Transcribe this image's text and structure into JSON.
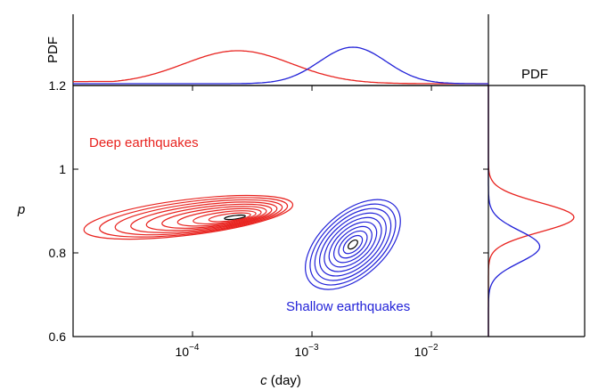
{
  "chart_data": {
    "type": "contour",
    "xlabel": "c (day)",
    "xlabel_var": "c",
    "xlabel_unit": " (day)",
    "ylabel": "p",
    "x_scale": "log",
    "xlim": [
      1e-05,
      0.03
    ],
    "ylim": [
      0.6,
      1.2
    ],
    "x_ticks": [
      {
        "base": "10",
        "exp": "−4",
        "value": 0.0001
      },
      {
        "base": "10",
        "exp": "−3",
        "value": 0.001
      },
      {
        "base": "10",
        "exp": "−2",
        "value": 0.01
      }
    ],
    "y_ticks": [
      {
        "label": "0.6",
        "value": 0.6
      },
      {
        "label": "0.8",
        "value": 0.8
      },
      {
        "label": "1",
        "value": 1.0
      },
      {
        "label": "1.2",
        "value": 1.2
      }
    ],
    "top_panel_label": "PDF",
    "right_panel_label": "PDF",
    "series": [
      {
        "name": "Deep earthquakes",
        "color": "#e8231f",
        "center_c": 0.00025,
        "center_p": 0.885,
        "marginal_c_peak": 0.00024,
        "marginal_p_peak": 0.885,
        "contour_levels": 10
      },
      {
        "name": "Shallow earthquakes",
        "color": "#2222d8",
        "center_c": 0.0022,
        "center_p": 0.82,
        "marginal_c_peak": 0.0022,
        "marginal_p_peak": 0.815,
        "contour_levels": 10
      }
    ],
    "peak_contour_color": "#000000"
  }
}
